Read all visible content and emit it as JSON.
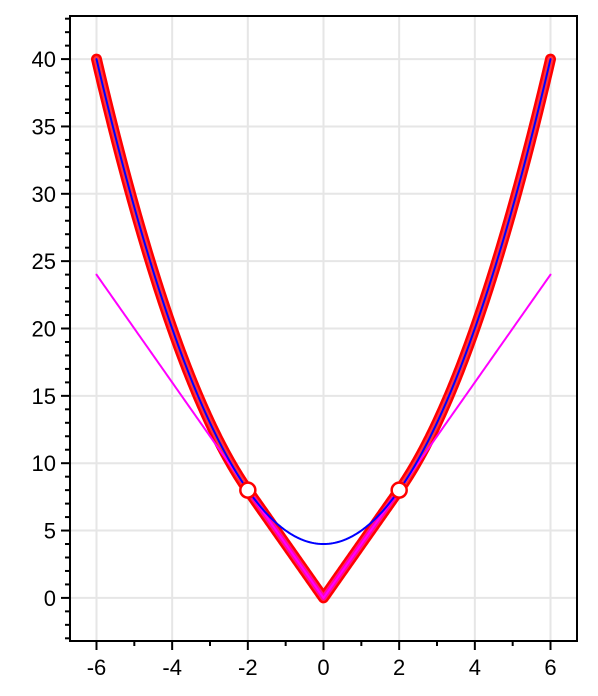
{
  "chart_data": {
    "type": "line",
    "xlim": [
      -6.7,
      6.7
    ],
    "ylim": [
      -3.2,
      43.2
    ],
    "grid": true,
    "x_ticks": [
      {
        "value": -6,
        "label": "-6"
      },
      {
        "value": -4,
        "label": "-4"
      },
      {
        "value": -2,
        "label": "-2"
      },
      {
        "value": 0,
        "label": "0"
      },
      {
        "value": 2,
        "label": "2"
      },
      {
        "value": 4,
        "label": "4"
      },
      {
        "value": 6,
        "label": "6"
      }
    ],
    "y_ticks": [
      {
        "value": 0,
        "label": "0"
      },
      {
        "value": 5,
        "label": "5"
      },
      {
        "value": 10,
        "label": "10"
      },
      {
        "value": 15,
        "label": "15"
      },
      {
        "value": 20,
        "label": "20"
      },
      {
        "value": 25,
        "label": "25"
      },
      {
        "value": 30,
        "label": "30"
      },
      {
        "value": 35,
        "label": "35"
      },
      {
        "value": 40,
        "label": "40"
      }
    ],
    "x_minor_step": 1,
    "y_minor_step": 1,
    "series": [
      {
        "color": "#ff0000",
        "style": "thick-outline",
        "piecewise": [
          {
            "x_min": -6,
            "x_max": -2,
            "formula": "x^2+4"
          },
          {
            "x_min": -2,
            "x_max": 2,
            "formula": "4|x|"
          },
          {
            "x_min": 2,
            "x_max": 6,
            "formula": "x^2+4"
          }
        ]
      },
      {
        "color": "#ff00aa",
        "style": "thick",
        "x_range": [
          -2,
          2
        ],
        "formula": "4|x|"
      },
      {
        "color": "#ff00ff",
        "style": "thin",
        "x_range": [
          -6,
          6
        ],
        "formula": "4|x|"
      },
      {
        "color": "#0000ff",
        "style": "thin",
        "x_range": [
          -6,
          6
        ],
        "formula": "x^2+4"
      }
    ],
    "points": [
      {
        "x": -2,
        "y": 8,
        "style": "open-circle",
        "color": "#ff0000"
      },
      {
        "x": 2,
        "y": 8,
        "style": "open-circle",
        "color": "#ff0000"
      }
    ]
  }
}
